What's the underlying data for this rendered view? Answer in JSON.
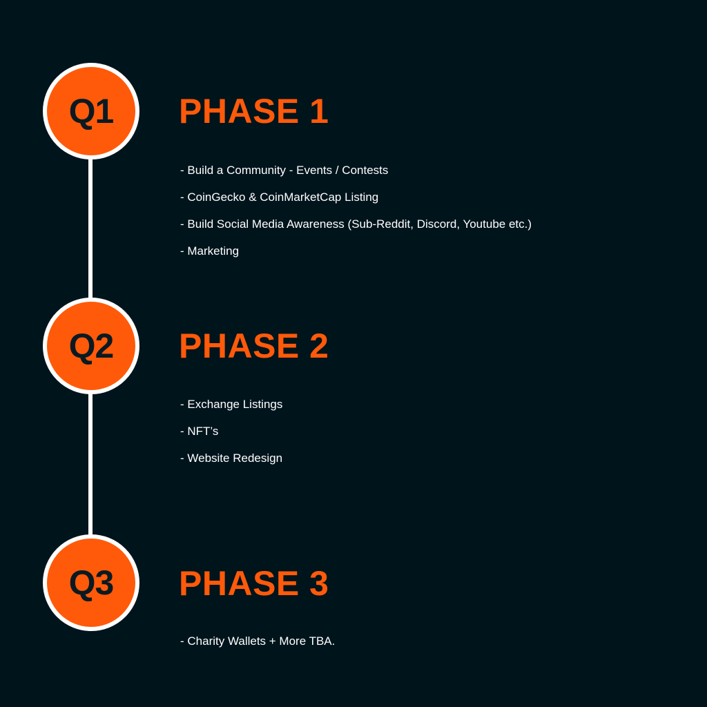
{
  "phases": [
    {
      "badge": "Q1",
      "title": "PHASE 1",
      "items": [
        "- Build a Community - Events / Contests",
        "- CoinGecko & CoinMarketCap Listing",
        "- Build Social Media Awareness (Sub-Reddit, Discord, Youtube etc.)",
        "- Marketing"
      ]
    },
    {
      "badge": "Q2",
      "title": "PHASE 2",
      "items": [
        "- Exchange Listings",
        "- NFT’s",
        "- Website Redesign"
      ]
    },
    {
      "badge": "Q3",
      "title": "PHASE 3",
      "items": [
        "- Charity Wallets + More TBA."
      ]
    }
  ],
  "colors": {
    "background": "#00141c",
    "accent": "#ff5a0a",
    "badge_text": "#0b1a22",
    "line": "#ffffff",
    "text": "#ffffff"
  }
}
